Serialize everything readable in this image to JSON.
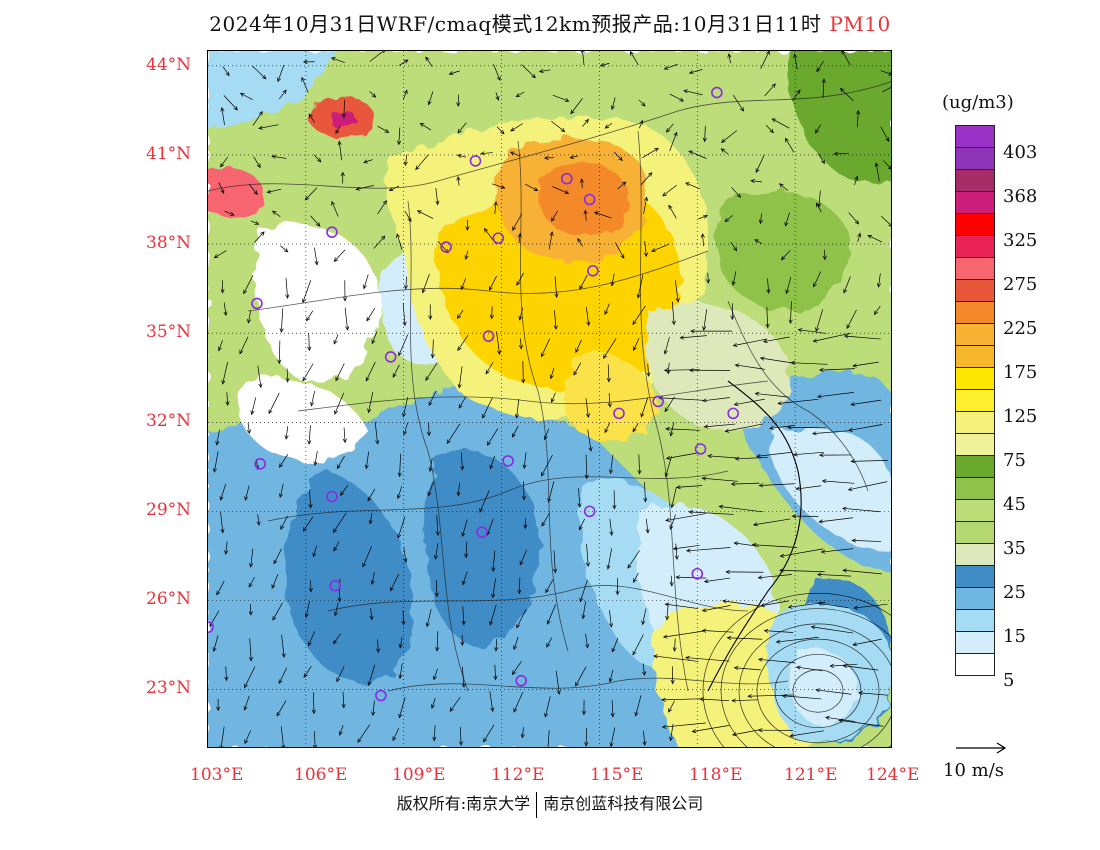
{
  "title": {
    "main": "2024年10月31日WRF/cmaq模式12km预报产品:10月31日11时",
    "pollutant": "PM10"
  },
  "map": {
    "lat_labels": [
      "44°N",
      "41°N",
      "38°N",
      "35°N",
      "32°N",
      "29°N",
      "26°N",
      "23°N"
    ],
    "lon_labels": [
      "103°E",
      "106°E",
      "109°E",
      "112°E",
      "115°E",
      "118°E",
      "121°E",
      "124°E"
    ],
    "lat_range": [
      21,
      44.5
    ],
    "lon_range": [
      103,
      124
    ],
    "stations": [
      {
        "lon": 118.6,
        "lat": 43.1
      },
      {
        "lon": 111.2,
        "lat": 40.8
      },
      {
        "lon": 114.0,
        "lat": 40.2
      },
      {
        "lon": 114.7,
        "lat": 39.5
      },
      {
        "lon": 106.8,
        "lat": 38.4
      },
      {
        "lon": 110.3,
        "lat": 37.9
      },
      {
        "lon": 111.9,
        "lat": 38.2
      },
      {
        "lon": 114.8,
        "lat": 37.1
      },
      {
        "lon": 104.5,
        "lat": 36.0
      },
      {
        "lon": 111.6,
        "lat": 34.9
      },
      {
        "lon": 108.6,
        "lat": 34.2
      },
      {
        "lon": 115.6,
        "lat": 32.3
      },
      {
        "lon": 116.8,
        "lat": 32.7
      },
      {
        "lon": 119.1,
        "lat": 32.3
      },
      {
        "lon": 118.1,
        "lat": 31.1
      },
      {
        "lon": 104.6,
        "lat": 30.6
      },
      {
        "lon": 112.2,
        "lat": 30.7
      },
      {
        "lon": 106.8,
        "lat": 29.5
      },
      {
        "lon": 114.7,
        "lat": 29.0
      },
      {
        "lon": 111.4,
        "lat": 28.3
      },
      {
        "lon": 118.0,
        "lat": 26.9
      },
      {
        "lon": 106.9,
        "lat": 26.5
      },
      {
        "lon": 103.0,
        "lat": 25.1
      },
      {
        "lon": 108.3,
        "lat": 22.8
      },
      {
        "lon": 112.6,
        "lat": 23.3
      }
    ],
    "colors": {
      "very_low": "#ffffff",
      "low": "#d3eefa",
      "light_blue": "#a6dcf3",
      "mid_blue": "#6fb6e1",
      "dark_blue": "#3f8cc6",
      "pale_green": "#dde9bb",
      "light_green": "#bddc7a",
      "green": "#8fc24a",
      "dark_green": "#6aa82e",
      "yellow_light": "#f4f27a",
      "yellow": "#fbe24a",
      "gold": "#fdd300",
      "orange_light": "#f7b234",
      "orange": "#f4892b",
      "red_orange": "#e8573a",
      "pink": "#f7656f",
      "magenta": "#cc1e7a",
      "purple": "#9b32c8",
      "station": "#8a2be2",
      "label_red": "#e8333a"
    }
  },
  "legend": {
    "unit": "(ug/m3)",
    "colors": [
      "#9b32c8",
      "#8e34b8",
      "#a62c68",
      "#cc1e7a",
      "#ff0000",
      "#ea2356",
      "#f7656f",
      "#e8573a",
      "#f4892b",
      "#f7b234",
      "#f6b72f",
      "#fde600",
      "#fcef2e",
      "#f4f27a",
      "#f0f29a",
      "#6aa82e",
      "#8fc24a",
      "#bddc7a",
      "#b5d872",
      "#dde9bb",
      "#3f8cc6",
      "#6fb6e1",
      "#a6dcf3",
      "#d3eefa",
      "#ffffff"
    ],
    "labels": [
      {
        "text": "403",
        "index": 1
      },
      {
        "text": "368",
        "index": 3
      },
      {
        "text": "325",
        "index": 5
      },
      {
        "text": "275",
        "index": 7
      },
      {
        "text": "225",
        "index": 9
      },
      {
        "text": "175",
        "index": 11
      },
      {
        "text": "125",
        "index": 13
      },
      {
        "text": "75",
        "index": 15
      },
      {
        "text": "45",
        "index": 17
      },
      {
        "text": "35",
        "index": 19
      },
      {
        "text": "25",
        "index": 21
      },
      {
        "text": "15",
        "index": 23
      },
      {
        "text": "5",
        "index": 25
      }
    ]
  },
  "wind_reference": {
    "label": "10 m/s"
  },
  "footer": {
    "left": "版权所有:南京大学",
    "right": "南京创蓝科技有限公司"
  }
}
